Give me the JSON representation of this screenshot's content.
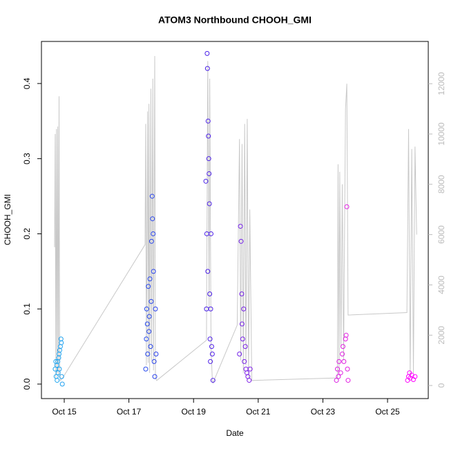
{
  "chart_data": {
    "type": "scatter",
    "title": "ATOM3 Northbound CHOOH_GMI",
    "x_label": "Date",
    "y_label": "CHOOH_GMI",
    "xlim": [
      14.295,
      26.26
    ],
    "ylim": [
      -0.0193,
      0.456
    ],
    "y2lim": [
      -520,
      13680
    ],
    "xticks": [
      {
        "value": 15,
        "label": "Oct 15"
      },
      {
        "value": 17,
        "label": "Oct 17"
      },
      {
        "value": 19,
        "label": "Oct 19"
      },
      {
        "value": 21,
        "label": "Oct 21"
      },
      {
        "value": 23,
        "label": "Oct 23"
      },
      {
        "value": 25,
        "label": "Oct 25"
      }
    ],
    "yticks": [
      {
        "value": 0,
        "label": "0.0"
      },
      0.1,
      0.2,
      0.3,
      0.4
    ],
    "y2ticks": [
      0,
      2000,
      4000,
      6000,
      8000,
      10000,
      12000
    ],
    "point_colors": [
      "#1fa8f0",
      "#1f5af0",
      "#4020e8",
      "#9a20e8",
      "#e020e0",
      "#ff00ff"
    ],
    "series": [
      {
        "type": "scatter",
        "x": [
          14.72,
          14.74,
          14.75,
          14.77,
          14.78,
          14.8,
          14.81,
          14.83,
          14.84,
          14.85,
          14.86,
          14.88,
          14.9,
          14.91,
          14.92,
          14.94,
          17.52,
          17.54,
          17.55,
          17.57,
          17.58,
          17.6,
          17.62,
          17.63,
          17.65,
          17.67,
          17.69,
          17.7,
          17.72,
          17.73,
          17.75,
          17.76,
          17.78,
          17.8,
          17.82,
          17.84,
          19.38,
          19.4,
          19.41,
          19.42,
          19.43,
          19.44,
          19.45,
          19.46,
          19.47,
          19.48,
          19.49,
          19.5,
          19.51,
          19.52,
          19.53,
          19.54,
          19.56,
          19.58,
          19.6,
          20.42,
          20.45,
          20.47,
          20.49,
          20.5,
          20.52,
          20.55,
          20.57,
          20.6,
          20.62,
          20.65,
          20.68,
          20.72,
          20.75,
          23.42,
          23.45,
          23.48,
          23.5,
          23.55,
          23.6,
          23.62,
          23.65,
          23.7,
          23.72,
          23.74,
          23.76,
          23.78,
          25.62,
          25.65,
          25.68,
          25.7,
          25.75,
          25.8,
          25.85
        ],
        "values": [
          0.02,
          0.03,
          0.01,
          0.025,
          0.005,
          0.03,
          0.015,
          0.035,
          0.04,
          0.02,
          0.045,
          0.05,
          0.06,
          0.055,
          0.01,
          0.0,
          0.02,
          0.06,
          0.1,
          0.08,
          0.04,
          0.13,
          0.07,
          0.09,
          0.14,
          0.05,
          0.11,
          0.19,
          0.25,
          0.22,
          0.2,
          0.15,
          0.03,
          0.01,
          0.1,
          0.04,
          0.27,
          0.1,
          0.2,
          0.44,
          0.42,
          0.15,
          0.35,
          0.33,
          0.3,
          0.28,
          0.24,
          0.12,
          0.06,
          0.03,
          0.1,
          0.2,
          0.05,
          0.04,
          0.005,
          0.04,
          0.21,
          0.19,
          0.12,
          0.08,
          0.06,
          0.1,
          0.03,
          0.05,
          0.02,
          0.015,
          0.01,
          0.005,
          0.02,
          0.005,
          0.02,
          0.01,
          0.03,
          0.015,
          0.04,
          0.05,
          0.03,
          0.06,
          0.065,
          0.236,
          0.02,
          0.005,
          0.005,
          0.01,
          0.015,
          0.008,
          0.012,
          0.006,
          0.01
        ]
      },
      {
        "type": "line",
        "axis": "y2",
        "color": "#c8c8c8",
        "x": [
          14.7,
          14.72,
          14.74,
          14.76,
          14.78,
          14.8,
          14.82,
          14.84,
          14.86,
          14.88,
          14.95,
          17.5,
          17.52,
          17.54,
          17.58,
          17.6,
          17.62,
          17.64,
          17.68,
          17.7,
          17.74,
          17.76,
          17.8,
          17.82,
          17.86,
          19.4,
          19.44,
          19.48,
          19.5,
          19.54,
          19.58,
          19.6,
          20.35,
          20.42,
          20.46,
          20.5,
          20.54,
          20.58,
          20.62,
          20.66,
          20.7,
          20.74,
          20.8,
          23.45,
          23.47,
          23.5,
          23.52,
          23.56,
          23.6,
          23.64,
          23.7,
          23.74,
          23.78,
          25.6,
          25.65,
          25.7,
          25.75,
          25.8,
          25.85,
          25.9
        ],
        "values": [
          5500,
          10000,
          300,
          10200,
          500,
          10300,
          400,
          11500,
          600,
          200,
          300,
          5600,
          10400,
          800,
          10900,
          900,
          11200,
          500,
          11800,
          1000,
          12200,
          600,
          13100,
          300,
          200,
          1800,
          12900,
          3000,
          12200,
          1500,
          200,
          100,
          2400,
          9800,
          1000,
          9600,
          500,
          10400,
          800,
          10600,
          300,
          7000,
          200,
          300,
          8800,
          500,
          8500,
          1500,
          8000,
          1000,
          11000,
          12000,
          2800,
          2900,
          10200,
          400,
          9400,
          500,
          9500,
          6000
        ]
      }
    ]
  }
}
